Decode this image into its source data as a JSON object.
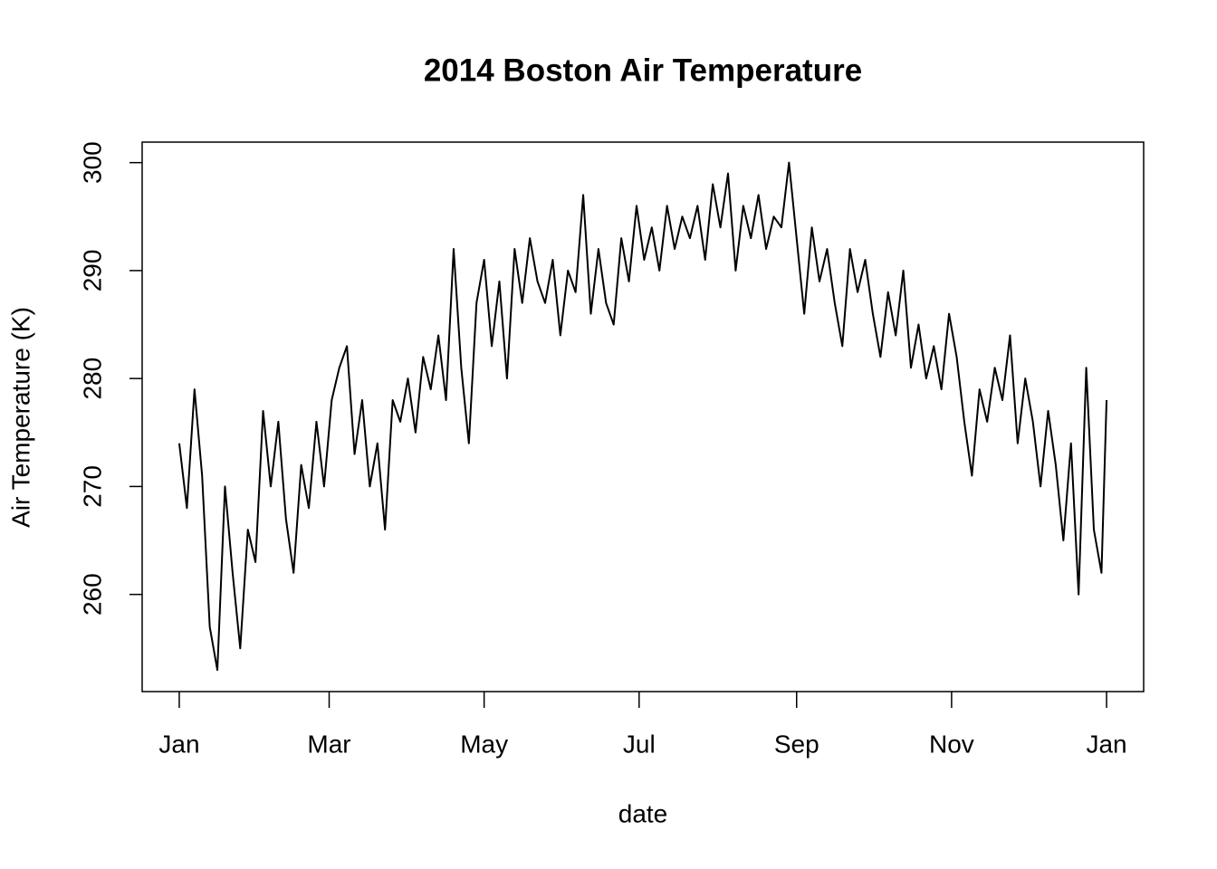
{
  "chart_data": {
    "type": "line",
    "title": "2014 Boston Air Temperature",
    "x_label": "date",
    "y_label": "Air Temperature (K)",
    "x": [
      0,
      3,
      6,
      9,
      12,
      15,
      18,
      21,
      24,
      27,
      30,
      33,
      36,
      39,
      42,
      45,
      48,
      51,
      54,
      57,
      60,
      63,
      66,
      69,
      72,
      75,
      78,
      81,
      84,
      87,
      90,
      93,
      96,
      99,
      102,
      105,
      108,
      111,
      114,
      117,
      120,
      123,
      126,
      129,
      132,
      135,
      138,
      141,
      144,
      147,
      150,
      153,
      156,
      159,
      162,
      165,
      168,
      171,
      174,
      177,
      180,
      183,
      186,
      189,
      192,
      195,
      198,
      201,
      204,
      207,
      210,
      213,
      216,
      219,
      222,
      225,
      228,
      231,
      234,
      237,
      240,
      243,
      246,
      249,
      252,
      255,
      258,
      261,
      264,
      267,
      270,
      273,
      276,
      279,
      282,
      285,
      288,
      291,
      294,
      297,
      300,
      303,
      306,
      309,
      312,
      315,
      318,
      321,
      324,
      327,
      330,
      333,
      336,
      339,
      342,
      345,
      348,
      351,
      354,
      357,
      360,
      363,
      365
    ],
    "values": [
      274,
      268,
      279,
      271,
      257,
      253,
      270,
      262,
      255,
      266,
      263,
      277,
      270,
      276,
      267,
      262,
      272,
      268,
      276,
      270,
      278,
      281,
      283,
      273,
      278,
      270,
      274,
      266,
      278,
      276,
      280,
      275,
      282,
      279,
      284,
      278,
      292,
      281,
      274,
      287,
      291,
      283,
      289,
      280,
      292,
      287,
      293,
      289,
      287,
      291,
      284,
      290,
      288,
      297,
      286,
      292,
      287,
      285,
      293,
      289,
      296,
      291,
      294,
      290,
      296,
      292,
      295,
      293,
      296,
      291,
      298,
      294,
      299,
      290,
      296,
      293,
      297,
      292,
      295,
      294,
      300,
      293,
      286,
      294,
      289,
      292,
      287,
      283,
      292,
      288,
      291,
      286,
      282,
      288,
      284,
      290,
      281,
      285,
      280,
      283,
      279,
      286,
      282,
      276,
      271,
      279,
      276,
      281,
      278,
      284,
      274,
      280,
      276,
      270,
      277,
      272,
      265,
      274,
      260,
      281,
      266,
      262,
      278
    ],
    "color": "#000000",
    "xlim": [
      -14.6,
      379.6
    ],
    "xticks": [
      {
        "value": 0,
        "label": "Jan"
      },
      {
        "value": 59,
        "label": "Mar"
      },
      {
        "value": 120,
        "label": "May"
      },
      {
        "value": 181,
        "label": "Jul"
      },
      {
        "value": 243,
        "label": "Sep"
      },
      {
        "value": 304,
        "label": "Nov"
      },
      {
        "value": 365,
        "label": "Jan"
      }
    ],
    "ylim": [
      251,
      301.9
    ],
    "yticks": [
      260,
      270,
      280,
      290,
      300
    ],
    "grid": false
  }
}
